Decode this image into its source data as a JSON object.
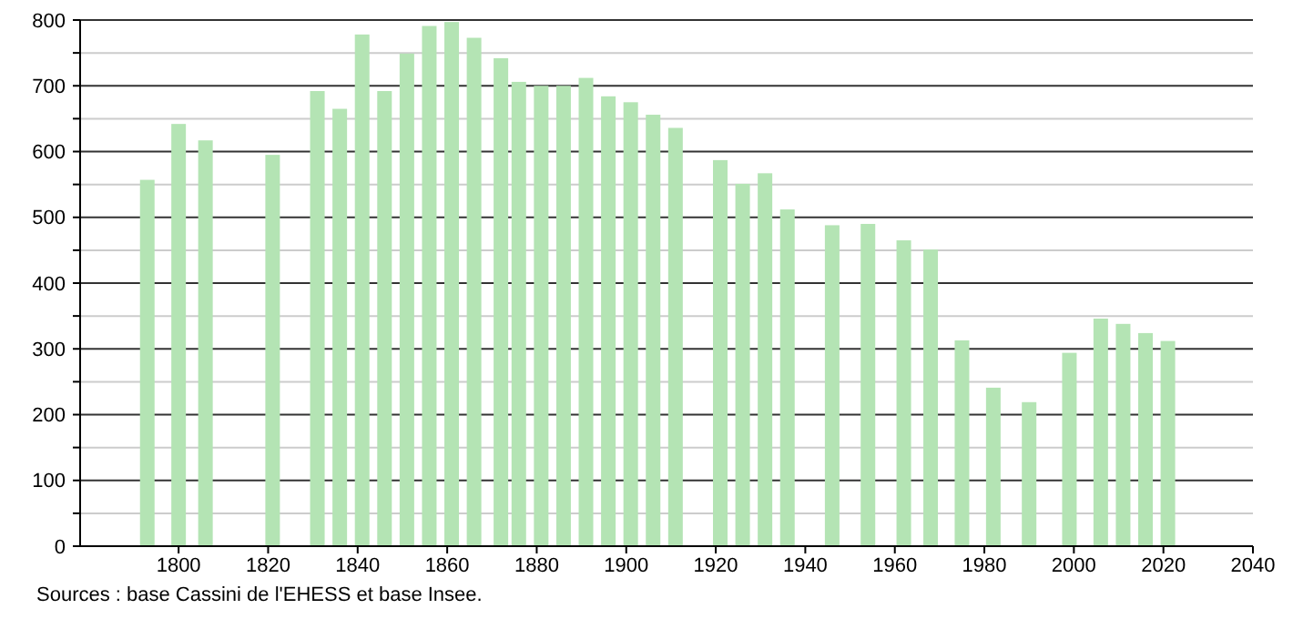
{
  "chart_data": {
    "type": "bar",
    "x": [
      1793,
      1800,
      1806,
      1821,
      1831,
      1836,
      1841,
      1846,
      1851,
      1856,
      1861,
      1866,
      1872,
      1876,
      1881,
      1886,
      1891,
      1896,
      1901,
      1906,
      1911,
      1921,
      1926,
      1931,
      1936,
      1946,
      1954,
      1962,
      1968,
      1975,
      1982,
      1990,
      1999,
      2006,
      2011,
      2016,
      2021
    ],
    "values": [
      557,
      642,
      617,
      595,
      692,
      665,
      778,
      692,
      749,
      791,
      797,
      773,
      742,
      706,
      700,
      700,
      712,
      684,
      675,
      656,
      636,
      587,
      551,
      567,
      512,
      488,
      490,
      465,
      451,
      313,
      241,
      219,
      294,
      346,
      338,
      324,
      312
    ],
    "color": "#b4e4b4",
    "xlim": [
      1778,
      2040
    ],
    "xticks": [
      1800,
      1820,
      1840,
      1860,
      1880,
      1900,
      1920,
      1940,
      1960,
      1980,
      2000,
      2020,
      2040
    ],
    "ylim": [
      0,
      800
    ],
    "yticks": [
      0,
      {
        "value": 50,
        "label": null
      },
      100,
      {
        "value": 150,
        "label": null
      },
      200,
      {
        "value": 250,
        "label": null
      },
      300,
      {
        "value": 350,
        "label": null
      },
      400,
      {
        "value": 450,
        "label": null
      },
      500,
      {
        "value": 550,
        "label": null
      },
      600,
      {
        "value": 650,
        "label": null
      },
      700,
      {
        "value": 750,
        "label": null
      },
      800
    ],
    "grid": "y",
    "annotations": [
      "Sources : base Cassini de l'EHESS et base Insee."
    ]
  }
}
